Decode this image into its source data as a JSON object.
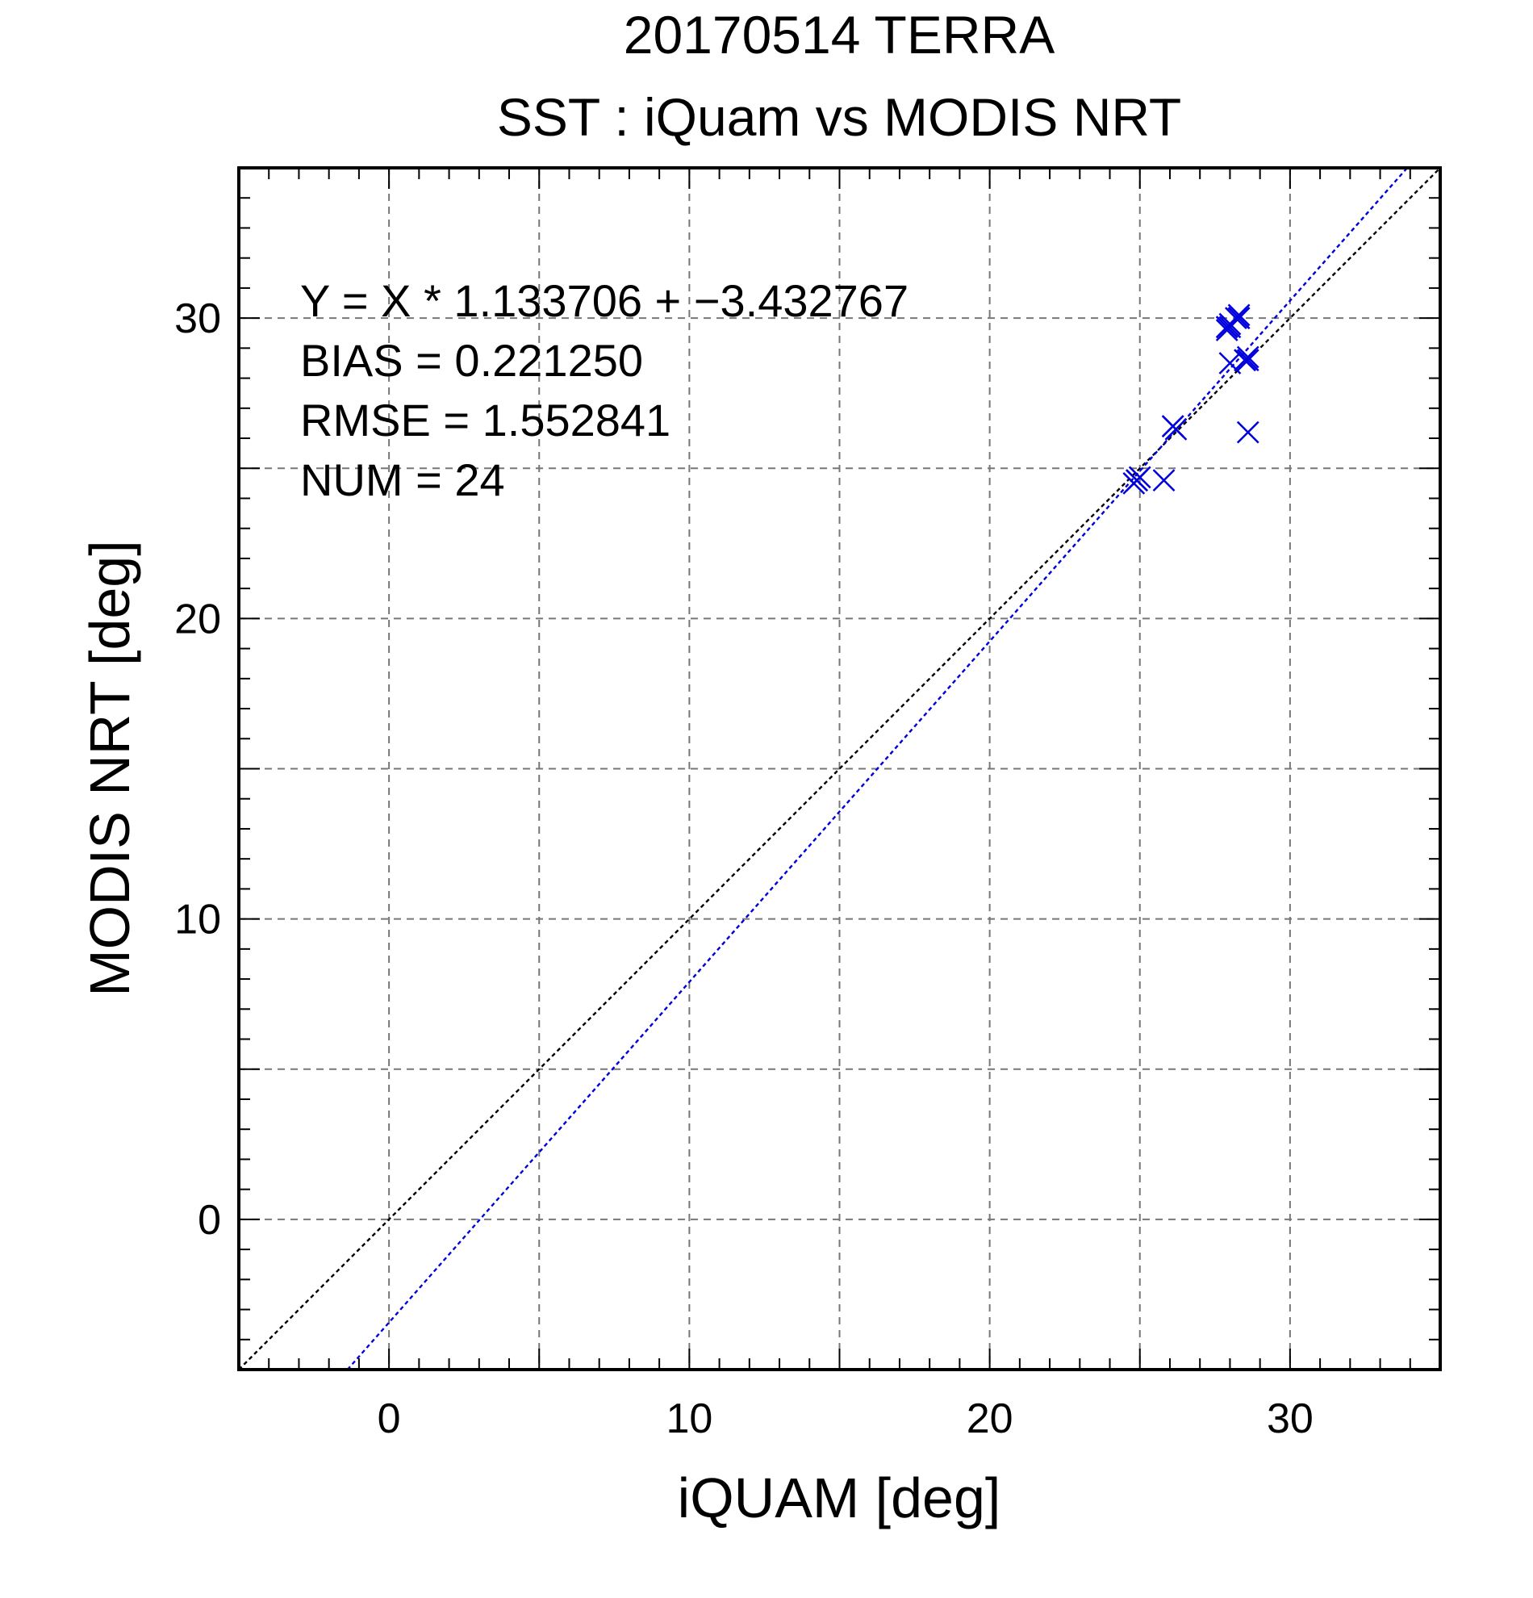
{
  "chart_data": {
    "type": "scatter",
    "title": "20170514 TERRA",
    "subtitle": "SST : iQuam vs MODIS NRT",
    "xlabel": "iQUAM [deg]",
    "ylabel": "MODIS NRT [deg]",
    "xlim": [
      -5,
      35
    ],
    "ylim": [
      -5,
      35
    ],
    "xticks": [
      0,
      10,
      20,
      30
    ],
    "yticks": [
      0,
      10,
      20,
      30
    ],
    "minor_step": 1,
    "grid_step": 5,
    "grid": true,
    "stats": {
      "regression": "Y = X * 1.133706 + −3.432767",
      "bias": "BIAS = 0.221250",
      "rmse": "RMSE = 1.552841",
      "num": "NUM = 24"
    },
    "regression_line": {
      "slope": 1.133706,
      "intercept": -3.432767,
      "color": "#0000dd"
    },
    "identity_line": {
      "slope": 1,
      "intercept": 0,
      "color": "#000000"
    },
    "marker_color": "#0000dd",
    "points": [
      {
        "x": 24.9,
        "y": 24.6
      },
      {
        "x": 24.9,
        "y": 24.6
      },
      {
        "x": 24.9,
        "y": 24.6
      },
      {
        "x": 24.8,
        "y": 24.5
      },
      {
        "x": 25.0,
        "y": 24.7
      },
      {
        "x": 25.8,
        "y": 24.6
      },
      {
        "x": 26.1,
        "y": 26.4
      },
      {
        "x": 26.2,
        "y": 26.3
      },
      {
        "x": 26.1,
        "y": 26.4
      },
      {
        "x": 28.0,
        "y": 28.5
      },
      {
        "x": 27.9,
        "y": 29.7
      },
      {
        "x": 27.9,
        "y": 29.7
      },
      {
        "x": 28.0,
        "y": 29.8
      },
      {
        "x": 27.9,
        "y": 29.6
      },
      {
        "x": 28.0,
        "y": 29.7
      },
      {
        "x": 28.3,
        "y": 30.0
      },
      {
        "x": 28.3,
        "y": 30.1
      },
      {
        "x": 28.2,
        "y": 30.0
      },
      {
        "x": 28.3,
        "y": 30.0
      },
      {
        "x": 28.5,
        "y": 28.6
      },
      {
        "x": 28.6,
        "y": 28.7
      },
      {
        "x": 28.5,
        "y": 28.6
      },
      {
        "x": 28.6,
        "y": 28.6
      },
      {
        "x": 28.6,
        "y": 26.2
      }
    ]
  }
}
